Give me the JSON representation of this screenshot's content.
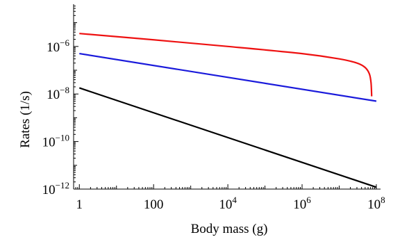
{
  "chart_data": {
    "type": "line",
    "xlabel": "Body mass (g)",
    "ylabel": "Rates (1/s)",
    "x_scale": "log",
    "y_scale": "log",
    "xlim": [
      0.7,
      130000000
    ],
    "ylim": [
      1e-12,
      6e-05
    ],
    "grid": false,
    "x_ticks": [
      {
        "value": 1,
        "base": "1",
        "exp": ""
      },
      {
        "value": 100,
        "base": "100",
        "exp": ""
      },
      {
        "value": 10000,
        "base": "10",
        "exp": "4"
      },
      {
        "value": 1000000,
        "base": "10",
        "exp": "6"
      },
      {
        "value": 100000000,
        "base": "10",
        "exp": "8"
      }
    ],
    "y_ticks": [
      {
        "value": 1e-12,
        "base": "10",
        "exp": "−12"
      },
      {
        "value": 1e-10,
        "base": "10",
        "exp": "−10"
      },
      {
        "value": 1e-08,
        "base": "10",
        "exp": "−8"
      },
      {
        "value": 1e-06,
        "base": "10",
        "exp": "−6"
      }
    ],
    "series": [
      {
        "color": "#ee1111",
        "points": [
          [
            1,
            3.5e-06
          ],
          [
            100,
            1.9e-06
          ],
          [
            10000,
            1e-06
          ],
          [
            1000000,
            5e-07
          ],
          [
            10000000,
            3e-07
          ],
          [
            30000000,
            2e-07
          ],
          [
            50000000,
            1.3e-07
          ],
          [
            65000000,
            7e-08
          ],
          [
            72000000,
            3e-08
          ],
          [
            75000000,
            8e-09
          ]
        ]
      },
      {
        "color": "#1a1adb",
        "points": [
          [
            1,
            5e-07
          ],
          [
            100000000,
            5e-09
          ]
        ]
      },
      {
        "color": "#000000",
        "points": [
          [
            1,
            1.8e-08
          ],
          [
            100000000,
            1.2e-12
          ]
        ]
      }
    ]
  }
}
